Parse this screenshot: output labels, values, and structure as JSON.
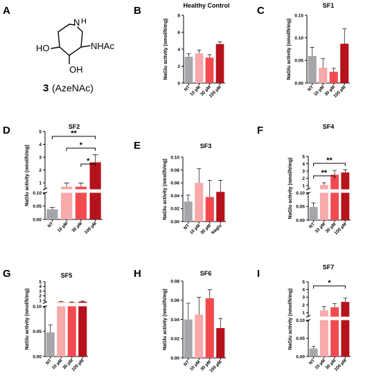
{
  "colors": [
    "#a6a5aa",
    "#f8a9aa",
    "#f34a50",
    "#b5121b"
  ],
  "molecule": {
    "panel_label": "A",
    "compound_number": "3",
    "compound_name": "(AzeNAc)",
    "atoms": {
      "n": "N",
      "h": "H",
      "oh_left": "HO",
      "oh_right": "OH",
      "nhac": "NHAc"
    }
  },
  "chart_data": [
    {
      "panel": "B",
      "type": "bar",
      "title": "Healthy Control",
      "ylabel": "NaGlu activity (nmol/h/mg)",
      "categories": [
        "NT",
        "10 µM",
        "30 µM",
        "100 µM"
      ],
      "values": [
        3.1,
        3.5,
        3.0,
        4.6
      ],
      "errors": [
        0.35,
        0.4,
        0.35,
        0.25
      ],
      "ylim": [
        0,
        8
      ],
      "yticks": [
        0,
        2,
        4,
        6,
        8
      ],
      "broken_axis": false,
      "significance": []
    },
    {
      "panel": "C",
      "type": "bar",
      "title": "SF1",
      "ylabel": "NaGlu activity (nmol/h/mg)",
      "categories": [
        "NT",
        "10 µM",
        "30 µM",
        "100 µM"
      ],
      "values": [
        0.06,
        0.034,
        0.025,
        0.087
      ],
      "errors": [
        0.019,
        0.02,
        0.008,
        0.033
      ],
      "ylim": [
        0,
        0.15
      ],
      "yticks": [
        0.0,
        0.05,
        0.1,
        0.15
      ],
      "broken_axis": false,
      "significance": []
    },
    {
      "panel": "D",
      "type": "bar",
      "title": "SF2",
      "ylabel": "NaGlu activity (nmol/h/mg)",
      "categories": [
        "NT",
        "10 µM",
        "30 µM",
        "100 µM"
      ],
      "values": [
        0.038,
        0.7,
        0.7,
        2.6
      ],
      "errors": [
        0.008,
        0.3,
        0.3,
        0.6
      ],
      "broken_axis": true,
      "lower": {
        "ylim": [
          0,
          0.1
        ],
        "yticks": [
          0.0,
          0.05,
          0.1
        ]
      },
      "upper": {
        "ylim": [
          0.5,
          5
        ],
        "yticks": [
          1,
          2,
          3,
          4,
          5
        ]
      },
      "significance": [
        {
          "from": 0,
          "to": 3,
          "label": "**"
        },
        {
          "from": 1,
          "to": 3,
          "label": "*"
        },
        {
          "from": 2,
          "to": 3,
          "label": "*"
        }
      ]
    },
    {
      "panel": "E",
      "type": "bar",
      "title": "SF3",
      "ylabel": "NaGlu activity (nmol/h/mg)",
      "categories": [
        "NT",
        "10 µM",
        "30 µM",
        "Naglu"
      ],
      "values": [
        0.031,
        0.06,
        0.038,
        0.046
      ],
      "errors": [
        0.01,
        0.022,
        0.026,
        0.018
      ],
      "ylim": [
        0,
        0.1
      ],
      "yticks": [
        0.0,
        0.02,
        0.04,
        0.06,
        0.08,
        0.1
      ],
      "broken_axis": false,
      "significance": []
    },
    {
      "panel": "F",
      "type": "bar",
      "title": "SF4",
      "ylabel": "NaGlu activity (nmol/h/mg)",
      "categories": [
        "NT",
        "10 µM",
        "30 µM",
        "100 µM"
      ],
      "values": [
        0.048,
        1.1,
        2.5,
        2.8
      ],
      "errors": [
        0.015,
        0.3,
        0.6,
        0.4
      ],
      "broken_axis": true,
      "lower": {
        "ylim": [
          0,
          0.1
        ],
        "yticks": [
          0.0,
          0.05,
          0.1
        ]
      },
      "upper": {
        "ylim": [
          0.5,
          5
        ],
        "yticks": [
          1,
          2,
          3,
          4,
          5
        ]
      },
      "significance": [
        {
          "from": 0,
          "to": 3,
          "label": "**"
        },
        {
          "from": 0,
          "to": 2,
          "label": "**"
        }
      ]
    },
    {
      "panel": "G",
      "type": "bar",
      "title": "SF5",
      "ylabel": "NaGlu activity (nmol/h/mg)",
      "categories": [
        "NT",
        "10 µM",
        "30 µM",
        "100 µM"
      ],
      "values": [
        0.048,
        0.7,
        0.6,
        0.75
      ],
      "errors": [
        0.015,
        0.1,
        0.08,
        0.12
      ],
      "broken_axis": true,
      "lower": {
        "ylim": [
          0,
          0.1
        ],
        "yticks": [
          0.0,
          0.05,
          0.1
        ]
      },
      "upper": {
        "ylim": [
          0.5,
          5
        ],
        "yticks": [
          1,
          2,
          3,
          4,
          5
        ]
      },
      "significance": []
    },
    {
      "panel": "H",
      "type": "bar",
      "title": "SF6",
      "ylabel": "NaGlu activity (nmol/h/mg)",
      "categories": [
        "NT",
        "10 µM",
        "30 µM",
        "100 µM"
      ],
      "values": [
        0.04,
        0.045,
        0.062,
        0.031
      ],
      "errors": [
        0.017,
        0.018,
        0.009,
        0.01
      ],
      "ylim": [
        0,
        0.08
      ],
      "yticks": [
        0.0,
        0.02,
        0.04,
        0.06,
        0.08
      ],
      "broken_axis": false,
      "significance": []
    },
    {
      "panel": "I",
      "type": "bar",
      "title": "SF7",
      "ylabel": "NaGlu activity (nmol/h/mg)",
      "categories": [
        "NT",
        "10 µM",
        "30 µM",
        "100 µM"
      ],
      "values": [
        0.022,
        1.3,
        1.7,
        2.4
      ],
      "errors": [
        0.006,
        0.5,
        0.5,
        0.5
      ],
      "broken_axis": true,
      "lower": {
        "ylim": [
          0,
          0.1
        ],
        "yticks": [
          0.0,
          0.05,
          0.1
        ]
      },
      "upper": {
        "ylim": [
          0.5,
          5
        ],
        "yticks": [
          1,
          2,
          3,
          4,
          5
        ]
      },
      "significance": [
        {
          "from": 0,
          "to": 3,
          "label": "*"
        }
      ]
    }
  ]
}
